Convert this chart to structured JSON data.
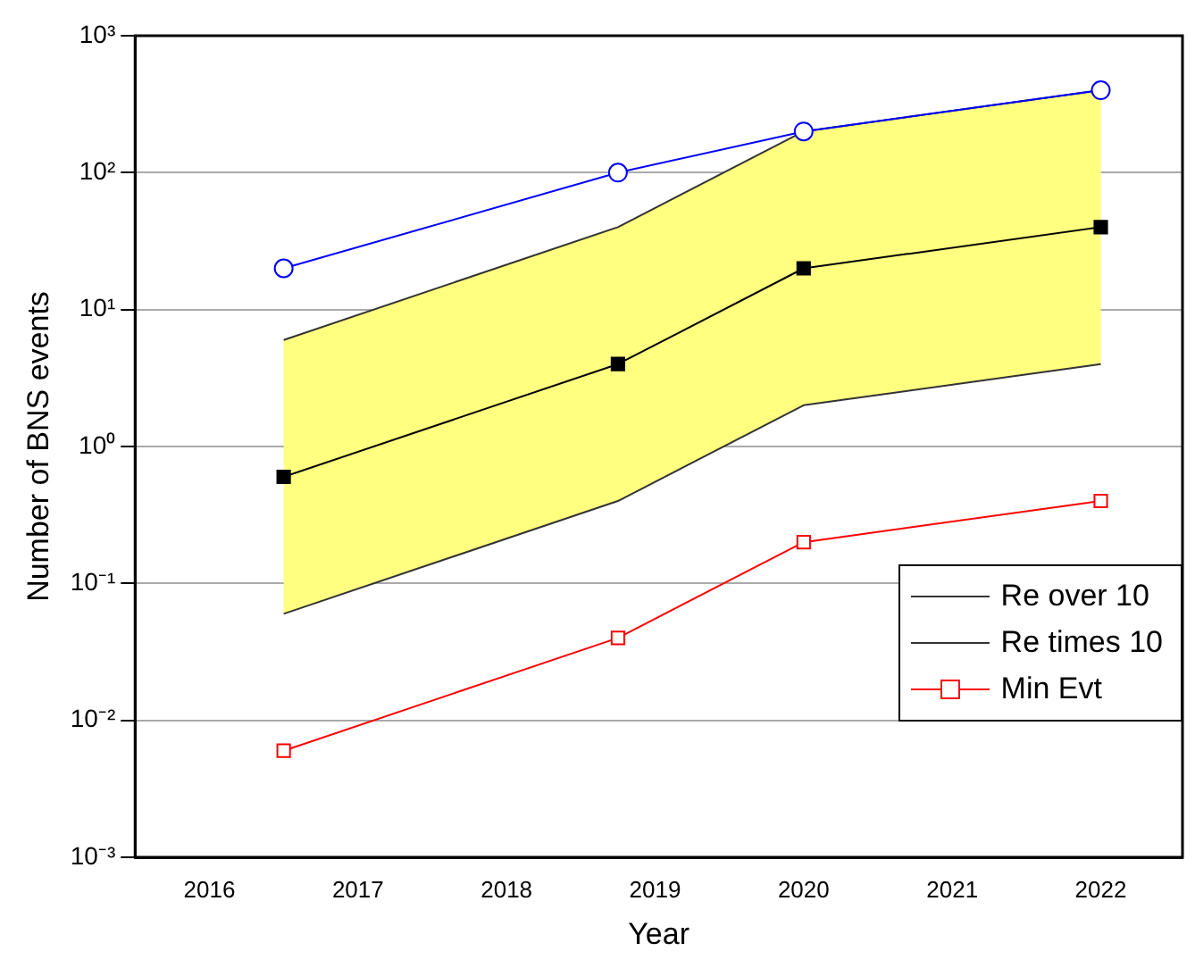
{
  "chart_data": {
    "type": "line",
    "xlabel": "Year",
    "ylabel": "Number of BNS events",
    "x": [
      2016.5,
      2018.75,
      2020,
      2022
    ],
    "series": [
      {
        "color": "#0000ff",
        "marker": "circle",
        "values": [
          20,
          100,
          200,
          400
        ]
      },
      {
        "color": "#000000",
        "marker": "square",
        "values": [
          0.6,
          4,
          20,
          40
        ],
        "lower": [
          0.06,
          0.4,
          2,
          4
        ],
        "upper": [
          6,
          40,
          200,
          400
        ]
      },
      {
        "name": "Re over 10",
        "color": "#333333",
        "marker": "none",
        "values": [
          0.06,
          0.4,
          2,
          4
        ]
      },
      {
        "name": "Re times 10",
        "color": "#333333",
        "marker": "none",
        "values": [
          6,
          40,
          200,
          400
        ]
      },
      {
        "name": "Min Evt",
        "color": "#ff0000",
        "marker": "square",
        "values": [
          0.006,
          0.04,
          0.2,
          0.4
        ]
      }
    ],
    "log": "y",
    "xlim": [
      2015.5,
      2022.55
    ],
    "xticks": [
      2016,
      2017,
      2018,
      2019,
      2020,
      2021,
      2022
    ],
    "ylim": [
      0.001,
      1000
    ],
    "yticks": [
      {
        "value": 0.001,
        "label": "10⁻³"
      },
      {
        "value": 0.01,
        "label": "10⁻²"
      },
      {
        "value": 0.1,
        "label": "10⁻¹"
      },
      {
        "value": 1,
        "label": "10⁰"
      },
      {
        "value": 10,
        "label": "10¹"
      },
      {
        "value": 100,
        "label": "10²"
      },
      {
        "value": 1000,
        "label": "10³"
      }
    ],
    "grid": "y",
    "legend": "bottom right",
    "line_style": "solid"
  }
}
